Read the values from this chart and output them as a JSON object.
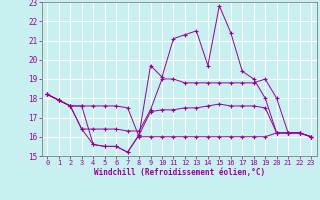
{
  "background_color": "#c8f0f0",
  "grid_color": "#ffffff",
  "line_color": "#990099",
  "marker": "+",
  "xlabel": "Windchill (Refroidissement éolien,°C)",
  "xlim": [
    -0.5,
    23.5
  ],
  "ylim": [
    15,
    23
  ],
  "yticks": [
    15,
    16,
    17,
    18,
    19,
    20,
    21,
    22,
    23
  ],
  "xticks": [
    0,
    1,
    2,
    3,
    4,
    5,
    6,
    7,
    8,
    9,
    10,
    11,
    12,
    13,
    14,
    15,
    16,
    17,
    18,
    19,
    20,
    21,
    22,
    23
  ],
  "series": [
    [
      18.2,
      17.9,
      17.6,
      17.6,
      15.6,
      15.5,
      15.5,
      15.2,
      16.1,
      17.3,
      17.4,
      17.4,
      17.5,
      17.5,
      17.6,
      17.7,
      17.6,
      17.6,
      17.6,
      17.5,
      16.2,
      16.2,
      16.2,
      16.0
    ],
    [
      18.2,
      17.9,
      17.6,
      17.6,
      17.6,
      17.6,
      17.6,
      17.5,
      16.0,
      16.0,
      16.0,
      16.0,
      16.0,
      16.0,
      16.0,
      16.0,
      16.0,
      16.0,
      16.0,
      16.0,
      16.2,
      16.2,
      16.2,
      16.0
    ],
    [
      18.2,
      17.9,
      17.6,
      16.4,
      16.4,
      16.4,
      16.4,
      16.3,
      16.3,
      17.4,
      19.0,
      19.0,
      18.8,
      18.8,
      18.8,
      18.8,
      18.8,
      18.8,
      18.8,
      19.0,
      18.0,
      16.2,
      16.2,
      16.0
    ],
    [
      18.2,
      17.9,
      17.6,
      16.4,
      15.6,
      15.5,
      15.5,
      15.2,
      16.1,
      19.7,
      19.1,
      21.1,
      21.3,
      21.5,
      19.7,
      22.8,
      21.4,
      19.4,
      19.0,
      18.0,
      16.2,
      16.2,
      16.2,
      16.0
    ]
  ],
  "spine_color": "#808080",
  "tick_color": "#808080"
}
